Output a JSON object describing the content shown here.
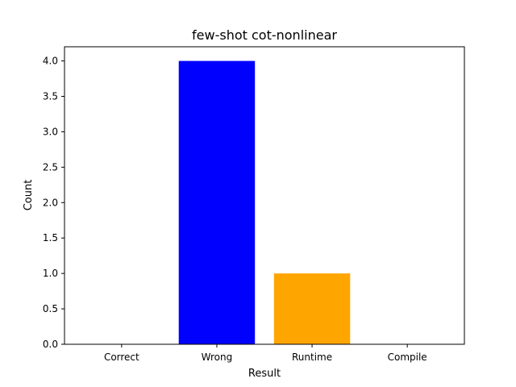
{
  "chart_data": {
    "type": "bar",
    "title": "few-shot cot-nonlinear",
    "xlabel": "Result",
    "ylabel": "Count",
    "categories": [
      "Correct",
      "Wrong",
      "Runtime",
      "Compile"
    ],
    "values": [
      0,
      4,
      1,
      0
    ],
    "colors": [
      "#2ca02c",
      "#0000ff",
      "#ffa500",
      "#ff0000"
    ],
    "ylim": [
      0,
      4.2
    ],
    "yticks": [
      "0.0",
      "0.5",
      "1.0",
      "1.5",
      "2.0",
      "2.5",
      "3.0",
      "3.5",
      "4.0"
    ],
    "grid": false,
    "legend": "none"
  }
}
